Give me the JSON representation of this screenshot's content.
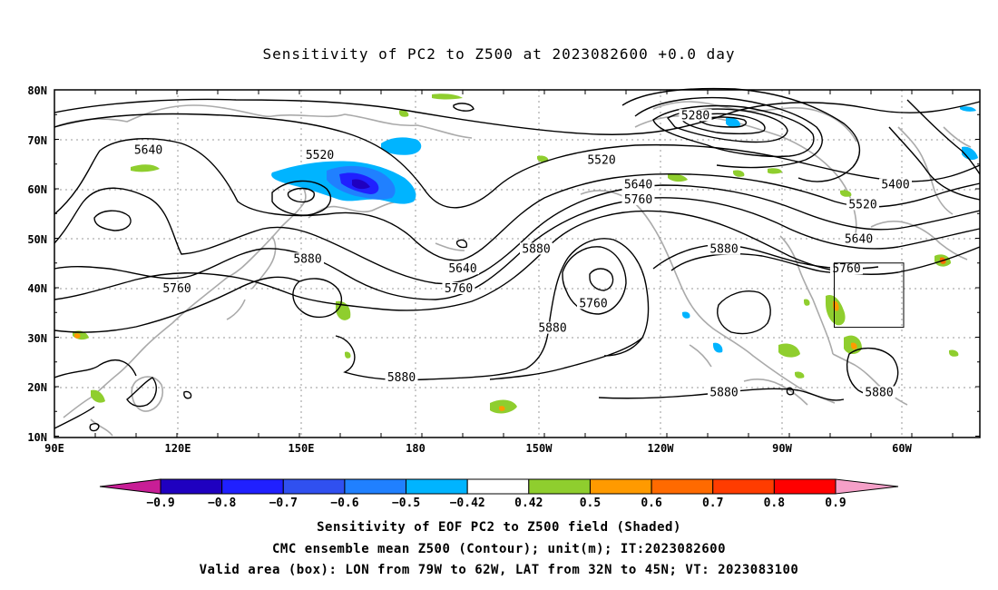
{
  "title": "Sensitivity of PC2 to Z500 at 2023082600 +0.0 day",
  "map": {
    "lat_labels": [
      "80N",
      "70N",
      "60N",
      "50N",
      "40N",
      "30N",
      "20N",
      "10N"
    ],
    "lon_labels": [
      "90E",
      "120E",
      "150E",
      "180",
      "150W",
      "120W",
      "90W",
      "60W"
    ],
    "contour_labels": [
      {
        "text": "5640",
        "lon": 113,
        "lat": 68
      },
      {
        "text": "5520",
        "lon": 155,
        "lat": 67
      },
      {
        "text": "5280",
        "lon": -113,
        "lat": 75
      },
      {
        "text": "5520",
        "lon": -136,
        "lat": 66
      },
      {
        "text": "5640",
        "lon": -127,
        "lat": 61
      },
      {
        "text": "5760",
        "lon": -127,
        "lat": 58
      },
      {
        "text": "5400",
        "lon": -64,
        "lat": 61
      },
      {
        "text": "5520",
        "lon": -72,
        "lat": 57
      },
      {
        "text": "5640",
        "lon": -73,
        "lat": 50
      },
      {
        "text": "5760",
        "lon": -76,
        "lat": 44
      },
      {
        "text": "5880",
        "lon": -106,
        "lat": 48
      },
      {
        "text": "5880",
        "lon": -152,
        "lat": 48
      },
      {
        "text": "5880",
        "lon": 152,
        "lat": 46
      },
      {
        "text": "5640",
        "lon": -170,
        "lat": 44
      },
      {
        "text": "5760",
        "lon": -171,
        "lat": 40
      },
      {
        "text": "5760",
        "lon": 120,
        "lat": 40
      },
      {
        "text": "5760",
        "lon": -138,
        "lat": 37
      },
      {
        "text": "5880",
        "lon": -148,
        "lat": 32
      },
      {
        "text": "5880",
        "lon": 175,
        "lat": 22
      },
      {
        "text": "5880",
        "lon": -106,
        "lat": 19
      },
      {
        "text": "5880",
        "lon": -68,
        "lat": 19
      }
    ],
    "valid_box": {
      "lon_w": -79,
      "lon_e": -62,
      "lat_s": 32,
      "lat_n": 45
    }
  },
  "colorbar": {
    "labels": [
      "-0.9",
      "-0.8",
      "-0.7",
      "-0.6",
      "-0.5",
      "-0.42",
      "0.42",
      "0.5",
      "0.6",
      "0.7",
      "0.8",
      "0.9"
    ],
    "colors": [
      "#1f00c0",
      "#2020ff",
      "#3050f0",
      "#2080ff",
      "#00b4ff",
      "#ffffff",
      "#8fce2e",
      "#ff9a00",
      "#ff6a00",
      "#ff3c00",
      "#ff0000"
    ],
    "low_end": "#c81e96",
    "high_end": "#f5a0c8"
  },
  "captions": {
    "line1": "Sensitivity of EOF PC2 to Z500 field (Shaded)",
    "line2": "CMC ensemble mean Z500 (Contour); unit(m); IT:2023082600",
    "line3": "Valid area (box): LON from 79W to 62W, LAT from 32N to 45N; VT: 2023083100"
  }
}
